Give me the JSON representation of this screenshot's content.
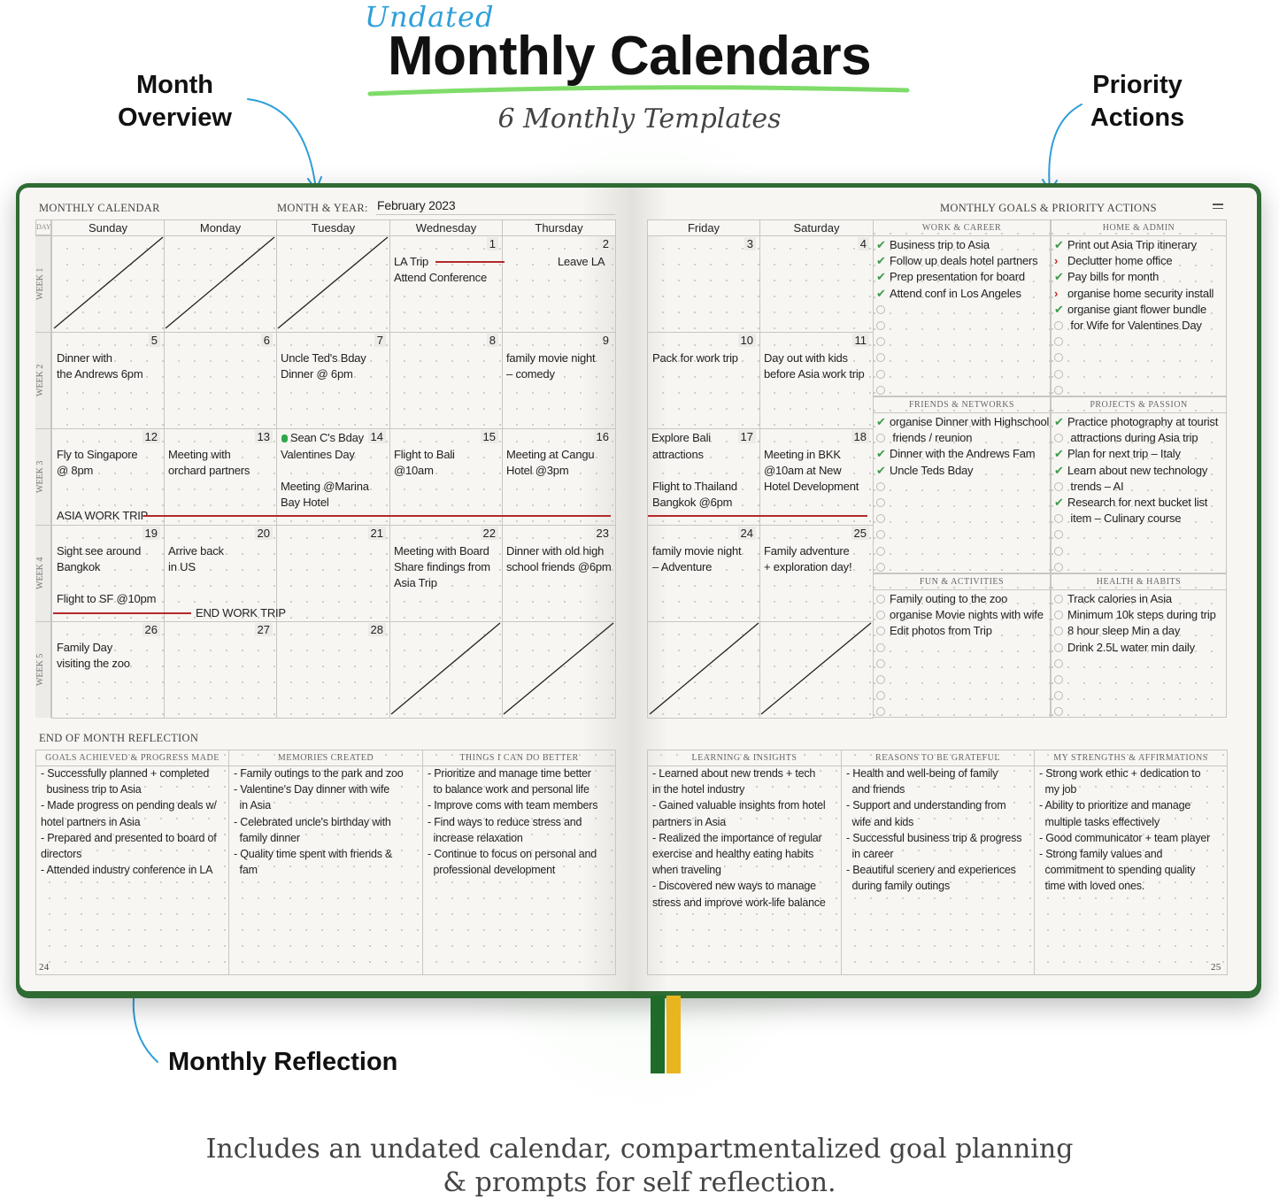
{
  "header": {
    "kicker": "Undated",
    "title": "Monthly Calendars",
    "subtitle": "6 Monthly Templates",
    "callout_left": [
      "Month",
      "Overview"
    ],
    "callout_right": [
      "Priority",
      "Actions"
    ],
    "callout_bottom": "Monthly Reflection",
    "caption": [
      "Includes an undated calendar, compartmentalized goal planning",
      "& prompts for self reflection."
    ]
  },
  "colors": {
    "cover": "#2f6b33",
    "accent_blue": "#2e9fd9",
    "trip_line": "#b22a2a",
    "check": "#3d9a4a",
    "moved": "#c62828",
    "ribbon_green": "#1f6b2a",
    "ribbon_yellow": "#e8b51f"
  },
  "calendar": {
    "title": "MONTHLY CALENDAR",
    "month_label": "MONTH & YEAR:",
    "month_value": "February 2023",
    "day_label": "DAY",
    "days": [
      "Sunday",
      "Monday",
      "Tuesday",
      "Wednesday",
      "Thursday",
      "Friday",
      "Saturday"
    ],
    "weeks": [
      {
        "label": "WEEK 1",
        "cells": [
          {
            "day": "",
            "blank": true,
            "notes": []
          },
          {
            "day": "",
            "blank": true,
            "notes": []
          },
          {
            "day": "",
            "blank": true,
            "notes": []
          },
          {
            "day": "1",
            "notes": [
              "LA Trip",
              "Attend Conference"
            ]
          },
          {
            "day": "2",
            "notes": [
              "                 Leave LA"
            ]
          },
          {
            "day": "3",
            "notes": []
          },
          {
            "day": "4",
            "notes": []
          }
        ]
      },
      {
        "label": "WEEK 2",
        "cells": [
          {
            "day": "5",
            "notes": [
              "Dinner with",
              "the Andrews 6pm"
            ]
          },
          {
            "day": "6",
            "notes": []
          },
          {
            "day": "7",
            "notes": [
              "Uncle Ted's Bday",
              "Dinner @ 6pm"
            ]
          },
          {
            "day": "8",
            "notes": []
          },
          {
            "day": "9",
            "notes": [
              "family movie night",
              "– comedy"
            ]
          },
          {
            "day": "10",
            "notes": [
              "Pack for work trip"
            ]
          },
          {
            "day": "11",
            "notes": [
              "Day out with kids",
              "before Asia work trip"
            ]
          }
        ]
      },
      {
        "label": "WEEK 3",
        "cells": [
          {
            "day": "12",
            "notes": [
              "Fly to Singapore",
              "@ 8pm"
            ]
          },
          {
            "day": "13",
            "notes": [
              "Meeting with",
              "orchard partners"
            ]
          },
          {
            "day": "14",
            "top_note": "Sean C's Bday",
            "notes": [
              "Valentines Day",
              "",
              "Meeting @Marina",
              "Bay Hotel"
            ]
          },
          {
            "day": "15",
            "notes": [
              "Flight to Bali",
              "@10am"
            ]
          },
          {
            "day": "16",
            "notes": [
              "Meeting at Cangu",
              "Hotel @3pm"
            ]
          },
          {
            "day": "17",
            "top_note": "Explore Bali",
            "notes": [
              "attractions",
              "",
              "Flight to Thailand",
              "Bangkok @6pm"
            ]
          },
          {
            "day": "18",
            "notes": [
              "Meeting in BKK",
              "@10am at New",
              "Hotel Development"
            ]
          }
        ]
      },
      {
        "label": "WEEK 4",
        "cells": [
          {
            "day": "19",
            "notes": [
              "Sight see around",
              "Bangkok",
              "",
              "Flight to SF @10pm"
            ]
          },
          {
            "day": "20",
            "notes": [
              "Arrive back",
              "in US"
            ]
          },
          {
            "day": "21",
            "notes": []
          },
          {
            "day": "22",
            "notes": [
              "Meeting with Board",
              "Share findings from",
              "Asia Trip"
            ]
          },
          {
            "day": "23",
            "notes": [
              "Dinner with old high",
              "school friends @6pm"
            ]
          },
          {
            "day": "24",
            "notes": [
              "family movie night",
              "– Adventure"
            ]
          },
          {
            "day": "25",
            "notes": [
              "Family adventure",
              "+ exploration day!"
            ]
          }
        ]
      },
      {
        "label": "WEEK 5",
        "cells": [
          {
            "day": "26",
            "notes": [
              "Family Day",
              "visiting the zoo"
            ]
          },
          {
            "day": "27",
            "notes": []
          },
          {
            "day": "28",
            "notes": []
          },
          {
            "day": "",
            "blank": true,
            "notes": []
          },
          {
            "day": "",
            "blank": true,
            "notes": []
          },
          {
            "day": "",
            "blank": true,
            "notes": []
          },
          {
            "day": "",
            "blank": true,
            "notes": []
          }
        ]
      }
    ],
    "spans": {
      "trip_start": "ASIA WORK TRIP",
      "trip_end": "END WORK TRIP"
    }
  },
  "goals": {
    "title": "MONTHLY GOALS & PRIORITY ACTIONS",
    "sections": [
      {
        "title": "WORK & CAREER",
        "items": [
          {
            "status": "done",
            "text": "Business trip to Asia"
          },
          {
            "status": "done",
            "text": "Follow up deals hotel partners"
          },
          {
            "status": "done",
            "text": "Prep presentation for board"
          },
          {
            "status": "done",
            "text": "Attend conf in Los Angeles"
          },
          {
            "status": "open",
            "text": ""
          },
          {
            "status": "open",
            "text": ""
          },
          {
            "status": "open",
            "text": ""
          },
          {
            "status": "open",
            "text": ""
          },
          {
            "status": "open",
            "text": ""
          },
          {
            "status": "open",
            "text": ""
          }
        ]
      },
      {
        "title": "HOME & ADMIN",
        "items": [
          {
            "status": "done",
            "text": "Print out Asia Trip itinerary"
          },
          {
            "status": "moved",
            "text": "Declutter home office"
          },
          {
            "status": "done",
            "text": "Pay bills for month"
          },
          {
            "status": "moved",
            "text": "organise home security install"
          },
          {
            "status": "done",
            "text": "organise giant flower bundle"
          },
          {
            "status": "open",
            "text": " for Wife for Valentines Day"
          },
          {
            "status": "open",
            "text": ""
          },
          {
            "status": "open",
            "text": ""
          },
          {
            "status": "open",
            "text": ""
          },
          {
            "status": "open",
            "text": ""
          }
        ]
      },
      {
        "title": "FRIENDS & NETWORKS",
        "items": [
          {
            "status": "done",
            "text": "organise Dinner with Highschool"
          },
          {
            "status": "open",
            "text": " friends / reunion"
          },
          {
            "status": "done",
            "text": "Dinner with the Andrews Fam"
          },
          {
            "status": "done",
            "text": "Uncle Teds Bday"
          },
          {
            "status": "open",
            "text": ""
          },
          {
            "status": "open",
            "text": ""
          },
          {
            "status": "open",
            "text": ""
          },
          {
            "status": "open",
            "text": ""
          },
          {
            "status": "open",
            "text": ""
          },
          {
            "status": "open",
            "text": ""
          }
        ]
      },
      {
        "title": "PROJECTS & PASSION",
        "items": [
          {
            "status": "done",
            "text": "Practice photography at tourist"
          },
          {
            "status": "open",
            "text": " attractions during Asia trip"
          },
          {
            "status": "done",
            "text": "Plan for next trip – Italy"
          },
          {
            "status": "done",
            "text": "Learn about new technology"
          },
          {
            "status": "open",
            "text": " trends – AI"
          },
          {
            "status": "done",
            "text": "Research for next bucket list"
          },
          {
            "status": "open",
            "text": " item – Culinary course"
          },
          {
            "status": "open",
            "text": ""
          },
          {
            "status": "open",
            "text": ""
          },
          {
            "status": "open",
            "text": ""
          }
        ]
      },
      {
        "title": "FUN & ACTIVITIES",
        "items": [
          {
            "status": "open",
            "text": "Family outing to the zoo"
          },
          {
            "status": "open",
            "text": "organise Movie nights with wife"
          },
          {
            "status": "open",
            "text": "Edit photos from Trip"
          },
          {
            "status": "open",
            "text": ""
          },
          {
            "status": "open",
            "text": ""
          },
          {
            "status": "open",
            "text": ""
          },
          {
            "status": "open",
            "text": ""
          },
          {
            "status": "open",
            "text": ""
          }
        ]
      },
      {
        "title": "HEALTH & HABITS",
        "items": [
          {
            "status": "open",
            "text": "Track calories in Asia"
          },
          {
            "status": "open",
            "text": "Minimum 10k steps during trip"
          },
          {
            "status": "open",
            "text": "8 hour sleep Min a day"
          },
          {
            "status": "open",
            "text": "Drink 2.5L water min daily"
          },
          {
            "status": "open",
            "text": ""
          },
          {
            "status": "open",
            "text": ""
          },
          {
            "status": "open",
            "text": ""
          },
          {
            "status": "open",
            "text": ""
          }
        ]
      }
    ]
  },
  "reflection": {
    "title": "END OF MONTH REFLECTION",
    "columns": [
      {
        "title": "GOALS ACHIEVED & PROGRESS MADE",
        "lines": [
          "- Successfully planned + completed",
          "  business trip to Asia",
          "- Made progress on pending deals w/",
          "hotel partners in Asia",
          "- Prepared and presented to board of",
          "directors",
          "- Attended industry conference in LA"
        ]
      },
      {
        "title": "MEMORIES CREATED",
        "lines": [
          "- Family outings to the park and zoo",
          "- Valentine's Day dinner with wife",
          "  in Asia",
          "- Celebrated uncle's birthday with",
          "  family dinner",
          "- Quality time spent with friends &",
          "  fam"
        ]
      },
      {
        "title": "THINGS I CAN DO BETTER",
        "lines": [
          "- Prioritize and manage time better",
          "  to balance work and personal life",
          "- Improve coms with team members",
          "- Find ways to reduce stress and",
          "  increase relaxation",
          "- Continue to focus on personal and",
          "  professional development"
        ]
      },
      {
        "title": "LEARNING & INSIGHTS",
        "lines": [
          "- Learned about new trends + tech",
          "in the hotel industry",
          "- Gained valuable insights from hotel",
          "partners in Asia",
          "- Realized the importance of regular",
          "exercise and healthy eating habits",
          "when traveling",
          "- Discovered new ways to manage",
          "stress and improve work-life balance"
        ]
      },
      {
        "title": "REASONS TO BE GRATEFUL",
        "lines": [
          "- Health and well-being of family",
          "  and friends",
          "- Support and understanding from",
          "  wife and kids",
          "- Successful business trip & progress",
          "  in career",
          "- Beautiful scenery and experiences",
          "  during family outings"
        ]
      },
      {
        "title": "MY STRENGTHS & AFFIRMATIONS",
        "lines": [
          "- Strong work ethic + dedication to",
          "  my job",
          "- Ability to prioritize and manage",
          "  multiple tasks effectively",
          "- Good communicator + team player",
          "- Strong family values and",
          "  commitment to spending quality",
          "  time with loved ones."
        ]
      }
    ]
  },
  "page_numbers": {
    "left": "24",
    "right": "25"
  }
}
